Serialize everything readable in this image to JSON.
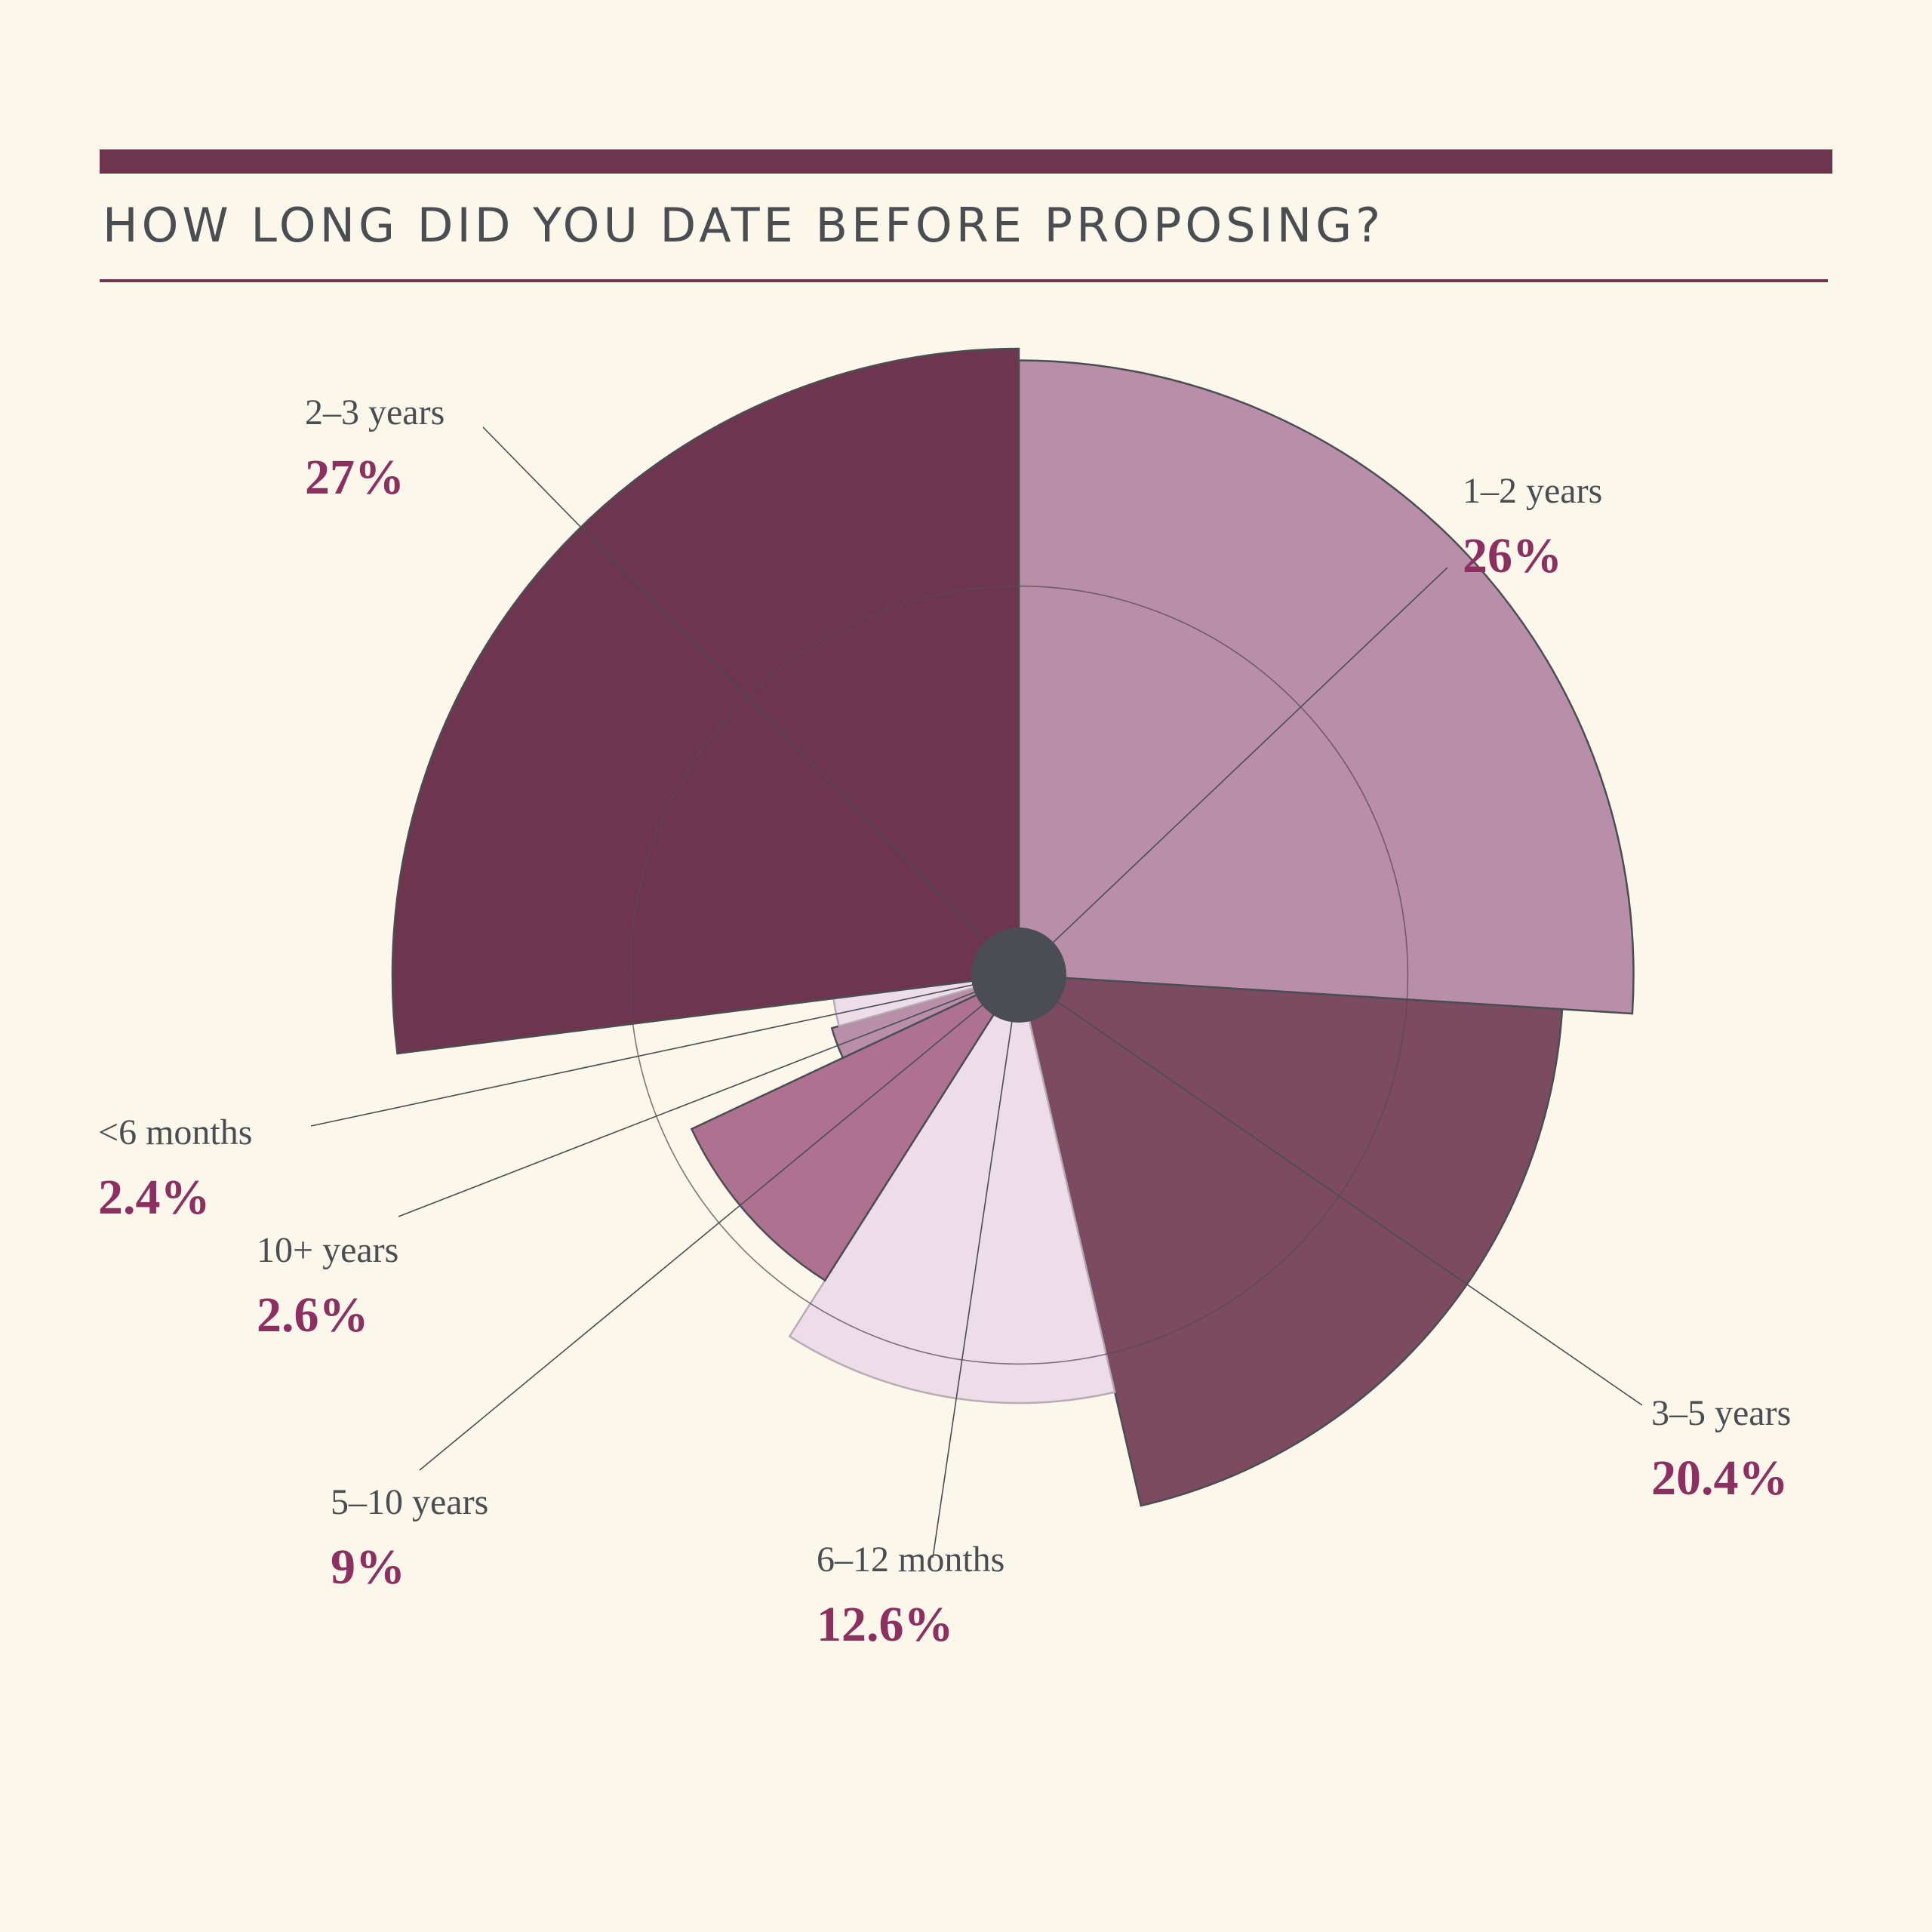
{
  "title": "HOW LONG DID YOU DATE BEFORE PROPOSING?",
  "colors": {
    "accent": "#6e364e",
    "value_text": "#8e2f62",
    "label_text": "#4a4d52",
    "background": "#fcf7eb"
  },
  "chart_data": {
    "type": "polar-area",
    "categories": [
      "1-2 years",
      "3-5 years",
      "6-12 months",
      "5-10 years",
      "10+ years",
      "<6 months",
      "2-3 years"
    ],
    "labels": [
      "1–2 years",
      "3–5 years",
      "6–12 months",
      "5–10 years",
      "10+ years",
      "<6 months",
      "2–3 years"
    ],
    "values": [
      26,
      20.4,
      12.6,
      9,
      2.6,
      2.4,
      27
    ],
    "value_labels": [
      "26%",
      "20.4%",
      "12.6%",
      "9%",
      "2.6%",
      "2.4%",
      "27%"
    ],
    "segment_colors": [
      "#b98ea8",
      "#7c4b60",
      "#ecdde8",
      "#ae7290",
      "#b98ea8",
      "#ecdde8",
      "#6e364e"
    ],
    "grid": "concentric circles",
    "start_angle": "top, clockwise",
    "legend": "none"
  }
}
